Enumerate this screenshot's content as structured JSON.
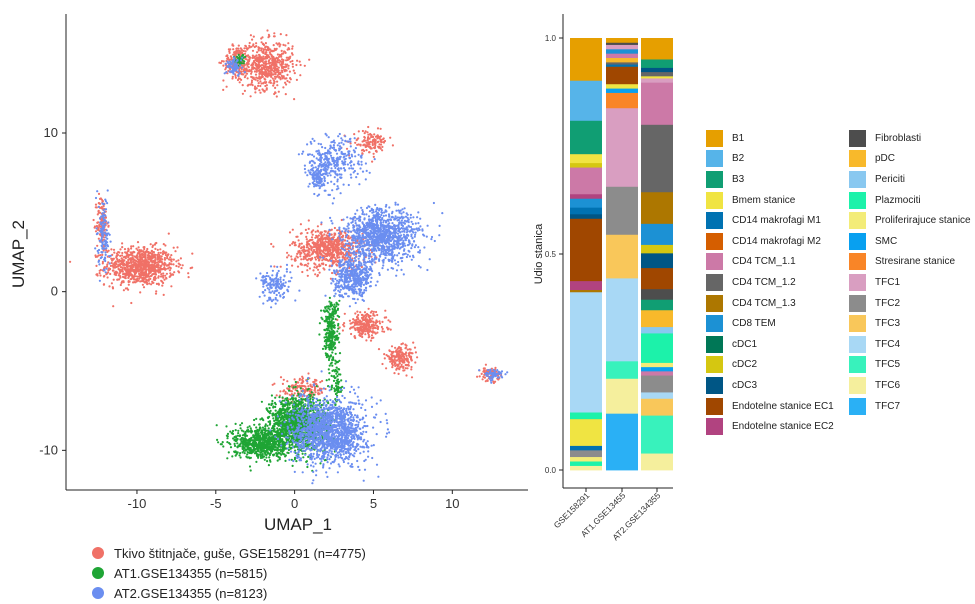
{
  "chart_data": [
    {
      "type": "scatter",
      "xlabel": "UMAP_1",
      "ylabel": "UMAP_2",
      "xlim": [
        -14.5,
        14.8
      ],
      "ylim": [
        -12.5,
        17.5
      ],
      "x_ticks": [
        -10,
        -5,
        0,
        5,
        10
      ],
      "y_ticks": [
        -10,
        0,
        10
      ],
      "series": [
        {
          "name": "Tkivo štitnjače, guše, GSE158291 (n=4775)",
          "color": "#f07167",
          "clusters": [
            [
              -9.8,
              1.6,
              2.2,
              1.2,
              900
            ],
            [
              -12.2,
              4.3,
              0.35,
              1.8,
              120
            ],
            [
              -3.7,
              14.5,
              0.8,
              1.0,
              180
            ],
            [
              -1.8,
              14.3,
              1.7,
              1.5,
              600
            ],
            [
              2.2,
              2.7,
              2.3,
              1.3,
              700
            ],
            [
              4.5,
              -2.1,
              1.3,
              0.8,
              250
            ],
            [
              6.7,
              -4.2,
              0.9,
              0.7,
              200
            ],
            [
              0.6,
              -6.2,
              1.5,
              0.7,
              150
            ],
            [
              4.8,
              9.4,
              1.1,
              0.7,
              130
            ],
            [
              12.4,
              -5.2,
              0.6,
              0.4,
              80
            ]
          ]
        },
        {
          "name": "AT1.GSE134355 (n=5815)",
          "color": "#1fa535",
          "clusters": [
            [
              0.2,
              -8.3,
              1.8,
              1.7,
              1400
            ],
            [
              -2.2,
              -9.5,
              1.7,
              1.0,
              700
            ],
            [
              2.3,
              -2.5,
              0.5,
              2.2,
              300
            ],
            [
              2.7,
              -6.0,
              0.35,
              1.2,
              60
            ],
            [
              -3.5,
              14.6,
              0.35,
              0.35,
              40
            ]
          ]
        },
        {
          "name": "AT2.GSE134355 (n=8123)",
          "color": "#6b8ef0",
          "clusters": [
            [
              2.2,
              -8.8,
              2.3,
              2.0,
              1500
            ],
            [
              5.5,
              3.5,
              2.4,
              1.7,
              1100
            ],
            [
              3.7,
              0.9,
              1.2,
              1.2,
              450
            ],
            [
              2.5,
              8.2,
              1.8,
              1.5,
              300
            ],
            [
              1.5,
              7.3,
              0.5,
              1.0,
              120
            ],
            [
              -12.1,
              3.5,
              0.35,
              2.4,
              120
            ],
            [
              -3.8,
              14.2,
              0.5,
              0.5,
              80
            ],
            [
              12.6,
              -5.2,
              0.6,
              0.35,
              60
            ],
            [
              -1.2,
              0.4,
              1.0,
              1.0,
              150
            ]
          ]
        }
      ]
    },
    {
      "type": "bar",
      "stacked": true,
      "ylabel": "Udio stanica",
      "ylim": [
        0,
        1
      ],
      "y_ticks": [
        "0.0",
        "0.5",
        "1.0"
      ],
      "categories": [
        "GSE158291",
        "AT1.GSE13455",
        "AT2.GSE134355"
      ],
      "legend_position": "right",
      "legend": [
        {
          "label": "B1",
          "color": "#e69f00"
        },
        {
          "label": "B2",
          "color": "#56b4e9"
        },
        {
          "label": "B3",
          "color": "#109e73"
        },
        {
          "label": "Bmem stanice",
          "color": "#f0e442"
        },
        {
          "label": "CD14 makrofagi M1",
          "color": "#0072b2"
        },
        {
          "label": "CD14 makrofagi M2",
          "color": "#d55e00"
        },
        {
          "label": "CD4 TCM_1.1",
          "color": "#cc79a7"
        },
        {
          "label": "CD4 TCM_1.2",
          "color": "#666666"
        },
        {
          "label": "CD4 TCM_1.3",
          "color": "#ad7700"
        },
        {
          "label": "CD8 TEM",
          "color": "#1c91d4"
        },
        {
          "label": "cDC1",
          "color": "#007756"
        },
        {
          "label": "cDC2",
          "color": "#d5c711"
        },
        {
          "label": "cDC3",
          "color": "#005685"
        },
        {
          "label": "Endotelne stanice EC1",
          "color": "#a04700"
        },
        {
          "label": "Endotelne stanice EC2",
          "color": "#b14380"
        },
        {
          "label": "Fibroblasti",
          "color": "#4d4d4d"
        },
        {
          "label": "pDC",
          "color": "#f8b92b"
        },
        {
          "label": "Periciti",
          "color": "#89c8f0"
        },
        {
          "label": "Plazmociti",
          "color": "#1cf2aa"
        },
        {
          "label": "Proliferirajuce stanice",
          "color": "#f3ec78"
        },
        {
          "label": "SMC",
          "color": "#08a0f0"
        },
        {
          "label": "Stresirane stanice",
          "color": "#f98527"
        },
        {
          "label": "TFC1",
          "color": "#d99ec1"
        },
        {
          "label": "TFC2",
          "color": "#8c8c8c"
        },
        {
          "label": "TFC3",
          "color": "#f9c75a"
        },
        {
          "label": "TFC4",
          "color": "#a8d8f5"
        },
        {
          "label": "TFC5",
          "color": "#38f2bc"
        },
        {
          "label": "TFC6",
          "color": "#f5ef9d"
        },
        {
          "label": "TFC7",
          "color": "#2ab0f5"
        }
      ],
      "stacks": [
        [
          [
            "B1",
            0.095
          ],
          [
            "B2",
            0.09
          ],
          [
            "B3",
            0.075
          ],
          [
            "Bmem stanice",
            0.02
          ],
          [
            "cDC2",
            0.01
          ],
          [
            "CD4 TCM_1.1",
            0.06
          ],
          [
            "Endotelne stanice EC2",
            0.01
          ],
          [
            "CD8 TEM",
            0.02
          ],
          [
            "CD14 makrofagi M1",
            0.015
          ],
          [
            "cDC3",
            0.01
          ],
          [
            "Endotelne stanice EC1",
            0.14
          ],
          [
            "Endotelne stanice EC2",
            0.02
          ],
          [
            "CD4 TCM_1.3",
            0.005
          ],
          [
            "TFC4",
            0.27
          ],
          [
            "Plazmociti",
            0.015
          ],
          [
            "Bmem stanice",
            0.06
          ],
          [
            "CD14 makrofagi M1",
            0.01
          ],
          [
            "TFC2",
            0.015
          ],
          [
            "Proliferirajuce stanice",
            0.01
          ],
          [
            "Plazmociti",
            0.01
          ],
          [
            "TFC6",
            0.01
          ]
        ],
        [
          [
            "B1",
            0.01
          ],
          [
            "Fibroblasti",
            0.005
          ],
          [
            "TFC1",
            0.01
          ],
          [
            "CD8 TEM",
            0.01
          ],
          [
            "CD4 TCM_1.1",
            0.01
          ],
          [
            "pDC",
            0.01
          ],
          [
            "CD4 TCM_1.2",
            0.005
          ],
          [
            "CD14 makrofagi M1",
            0.005
          ],
          [
            "Endotelne stanice EC1",
            0.04
          ],
          [
            "Bmem stanice",
            0.01
          ],
          [
            "SMC",
            0.01
          ],
          [
            "Stresirane stanice",
            0.035
          ],
          [
            "TFC1",
            0.18
          ],
          [
            "TFC2",
            0.11
          ],
          [
            "TFC3",
            0.1
          ],
          [
            "TFC4",
            0.19
          ],
          [
            "TFC5",
            0.04
          ],
          [
            "TFC6",
            0.08
          ],
          [
            "TFC7",
            0.13
          ]
        ],
        [
          [
            "B1",
            0.05
          ],
          [
            "B3",
            0.02
          ],
          [
            "cDC3",
            0.01
          ],
          [
            "CD4 TCM_1.2",
            0.01
          ],
          [
            "Bmem stanice",
            0.005
          ],
          [
            "TFC1",
            0.01
          ],
          [
            "CD4 TCM_1.1",
            0.1
          ],
          [
            "CD4 TCM_1.2",
            0.16
          ],
          [
            "CD4 TCM_1.3",
            0.075
          ],
          [
            "CD8 TEM",
            0.05
          ],
          [
            "cDC2",
            0.02
          ],
          [
            "cDC3",
            0.035
          ],
          [
            "Endotelne stanice EC1",
            0.05
          ],
          [
            "Fibroblasti",
            0.025
          ],
          [
            "B3",
            0.025
          ],
          [
            "pDC",
            0.04
          ],
          [
            "Periciti",
            0.015
          ],
          [
            "Plazmociti",
            0.07
          ],
          [
            "Proliferirajuce stanice",
            0.01
          ],
          [
            "SMC",
            0.01
          ],
          [
            "CD4 TCM_1.1",
            0.01
          ],
          [
            "TFC2",
            0.04
          ],
          [
            "TFC4",
            0.015
          ],
          [
            "TFC3",
            0.04
          ],
          [
            "TFC5",
            0.09
          ],
          [
            "TFC6",
            0.04
          ]
        ]
      ]
    }
  ]
}
